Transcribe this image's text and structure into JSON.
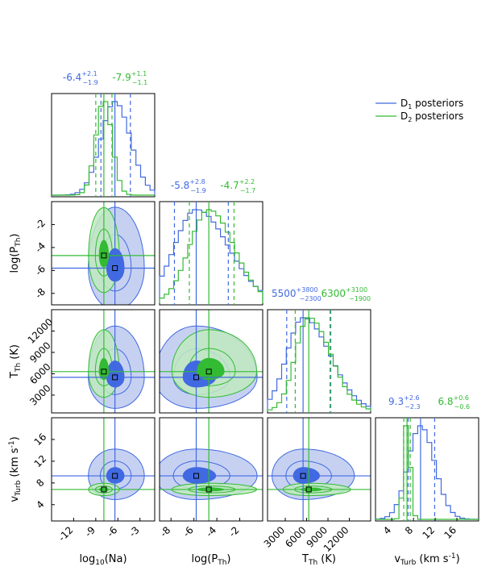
{
  "chart_data": {
    "type": "corner",
    "parameters": [
      {
        "id": "na",
        "label_main": "log",
        "label_sub": "10",
        "label_tail": "(Na)",
        "range": [
          -15,
          -1
        ],
        "ticks": [
          -12,
          -9,
          -6,
          -3
        ]
      },
      {
        "id": "p",
        "label_main": "log(P",
        "label_sub": "Th",
        "label_tail": ")",
        "range": [
          -9,
          0
        ],
        "ticks": [
          -8,
          -6,
          -4,
          -2
        ]
      },
      {
        "id": "t",
        "label_main": "T",
        "label_sub": "Th",
        "label_tail": " (K)",
        "range": [
          500,
          15000
        ],
        "ticks": [
          3000,
          6000,
          9000,
          12000
        ]
      },
      {
        "id": "v",
        "label_main": "v",
        "label_sub": "Turb",
        "label_tail": " (km s",
        "label_sup": "-1",
        "label_tail2": ")",
        "range": [
          1,
          20
        ],
        "ticks": [
          4,
          8,
          12,
          16
        ]
      }
    ],
    "series": [
      {
        "name_main": "D",
        "name_sub": "1",
        "name_tail": "  posteriors",
        "color": "#4169e1",
        "fill": "#bcc9f0",
        "core": "#4169e1",
        "medians": [
          -6.4,
          -5.8,
          5500,
          9.3
        ],
        "lo": [
          -8.3,
          -7.7,
          3200,
          7.0
        ],
        "hi": [
          -4.3,
          -3.0,
          9300,
          11.9
        ],
        "annot": [
          {
            "val": "-6.4",
            "up": "+2.1",
            "dn": "−1.9"
          },
          {
            "val": "-5.8",
            "up": "+2.8",
            "dn": "−1.9"
          },
          {
            "val": "5500",
            "up": "+3800",
            "dn": "−2300"
          },
          {
            "val": "9.3",
            "up": "+2.6",
            "dn": "−2.3"
          }
        ]
      },
      {
        "name_main": "D",
        "name_sub": "2",
        "name_tail": "  posteriors",
        "color": "#33bb33",
        "fill": "#bfeabf",
        "core": "#33bb33",
        "medians": [
          -7.9,
          -4.7,
          6300,
          6.8
        ],
        "lo": [
          -9.0,
          -6.4,
          4400,
          6.2
        ],
        "hi": [
          -6.8,
          -2.5,
          9400,
          7.4
        ],
        "annot": [
          {
            "val": "-7.9",
            "up": "+1.1",
            "dn": "−1.1"
          },
          {
            "val": "-4.7",
            "up": "+2.2",
            "dn": "−1.7"
          },
          {
            "val": "6300",
            "up": "+3100",
            "dn": "−1900"
          },
          {
            "val": "6.8",
            "up": "+0.6",
            "dn": "−0.6"
          }
        ]
      }
    ]
  }
}
